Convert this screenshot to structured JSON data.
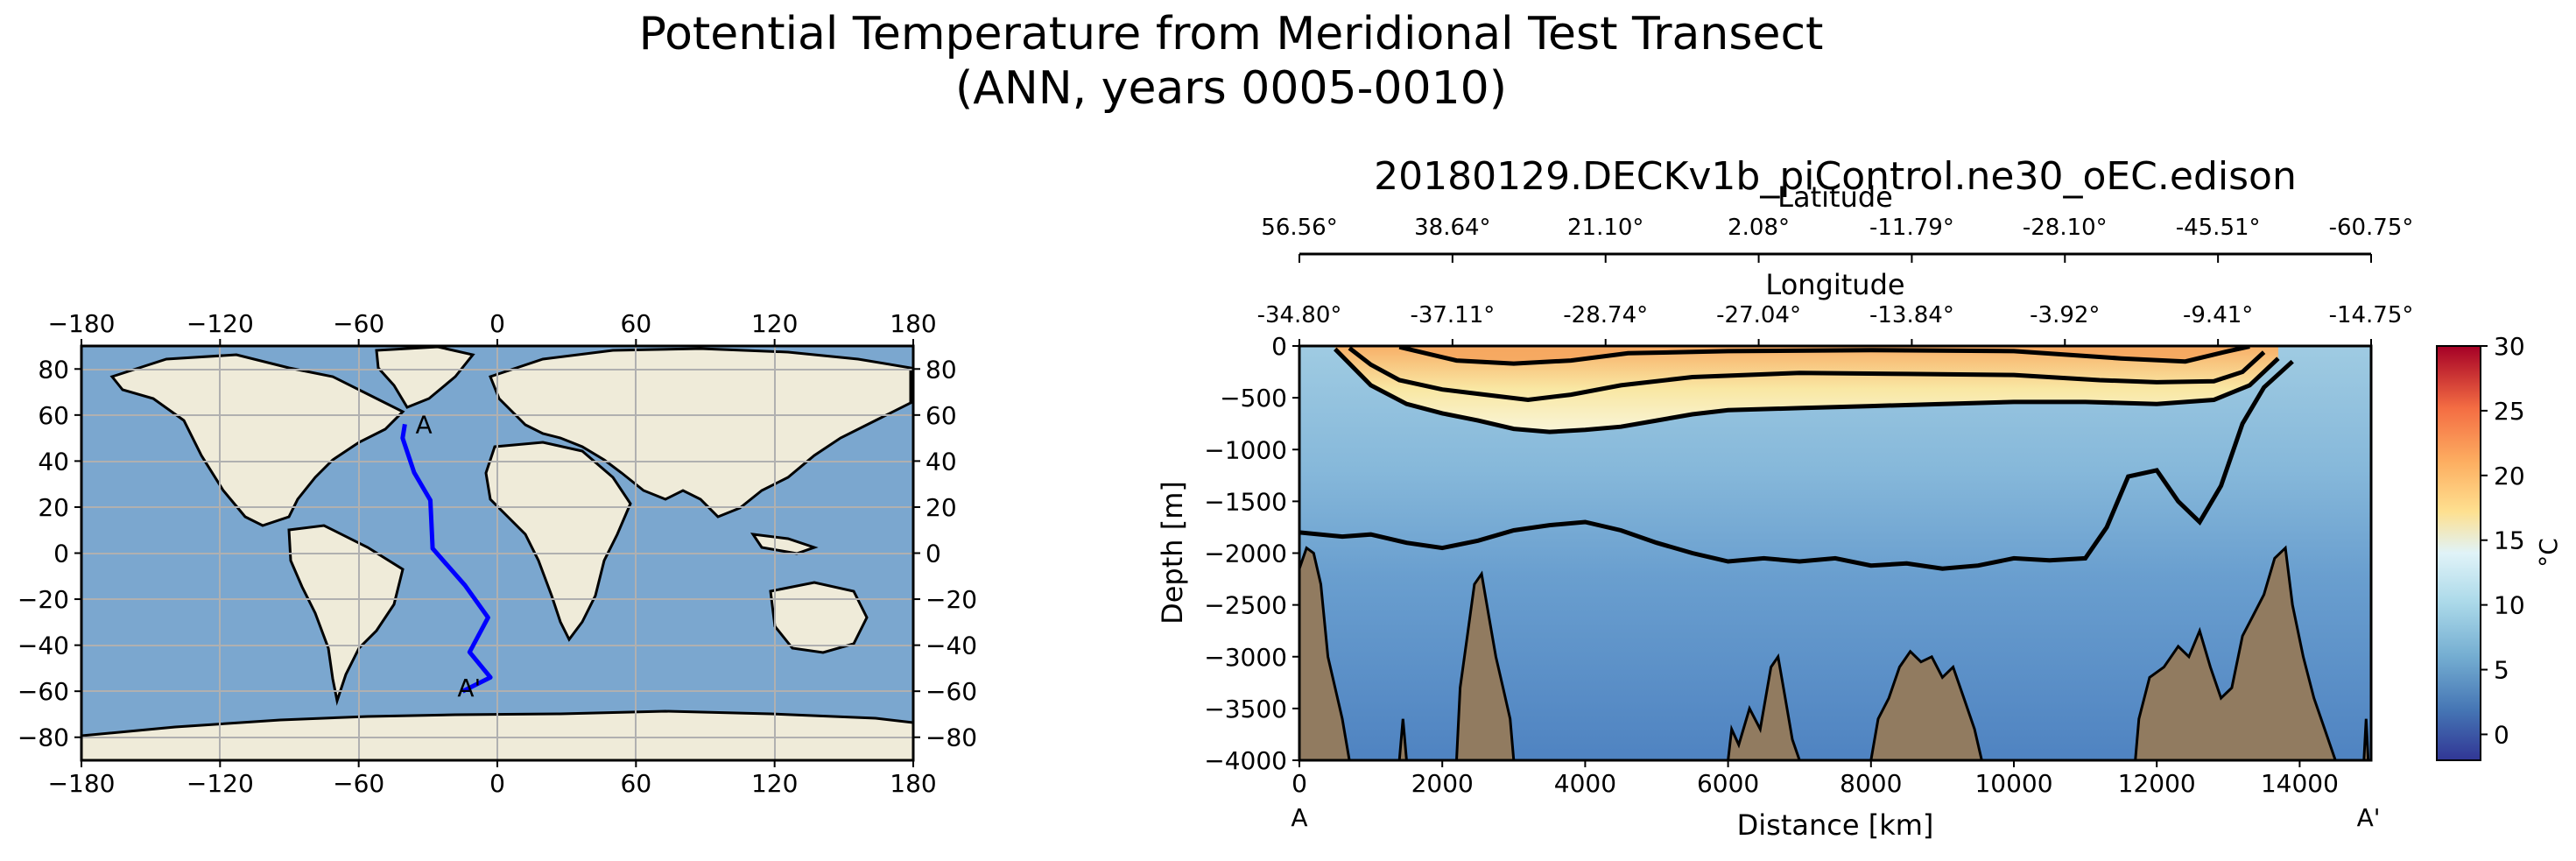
{
  "figure": {
    "title_line1": "Potential Temperature from Meridional Test Transect",
    "title_line2": "(ANN, years 0005-0010)"
  },
  "chart_data": [
    {
      "type": "map",
      "name": "transect-map",
      "x_ticks": [
        "−180",
        "−120",
        "−60",
        "0",
        "60",
        "120",
        "180"
      ],
      "y_ticks": [
        "80",
        "60",
        "40",
        "20",
        "0",
        "−20",
        "−40",
        "−60",
        "−80"
      ],
      "lon_range": [
        -180,
        180
      ],
      "lat_range": [
        -90,
        90
      ],
      "grid": true,
      "start_label": "A",
      "end_label": "A'",
      "transect_color": "#0000ff",
      "transect": [
        {
          "lon": -40,
          "lat": 56
        },
        {
          "lon": -41,
          "lat": 50
        },
        {
          "lon": -36,
          "lat": 35
        },
        {
          "lon": -29,
          "lat": 23
        },
        {
          "lon": -28,
          "lat": 2
        },
        {
          "lon": -14,
          "lat": -14
        },
        {
          "lon": -4,
          "lat": -28
        },
        {
          "lon": -12,
          "lat": -43
        },
        {
          "lon": -3,
          "lat": -54
        },
        {
          "lon": -15,
          "lat": -60
        }
      ],
      "ocean_color": "#7ba7cf",
      "land_color": "#efebd9"
    },
    {
      "type": "section",
      "name": "temperature-section",
      "title": "20180129.DECKv1b_piControl.ne30_oEC.edison",
      "xlabel": "Distance [km]",
      "ylabel": "Depth [m]",
      "xlim": [
        0,
        15000
      ],
      "ylim": [
        -4000,
        0
      ],
      "x_ticks": [
        "0",
        "2000",
        "4000",
        "6000",
        "8000",
        "10000",
        "12000",
        "14000"
      ],
      "y_ticks": [
        "0",
        "−500",
        "−1000",
        "−1500",
        "−2000",
        "−2500",
        "−3000",
        "−3500",
        "−4000"
      ],
      "start_label": "A",
      "end_label": "A'",
      "latitude_axis_label": "Latitude",
      "latitude_ticks": [
        "56.56°",
        "38.64°",
        "21.10°",
        "2.08°",
        "-11.79°",
        "-28.10°",
        "-45.51°",
        "-60.75°"
      ],
      "longitude_axis_label": "Longitude",
      "longitude_ticks": [
        "-34.80°",
        "-37.11°",
        "-28.74°",
        "-27.04°",
        "-13.84°",
        "-3.92°",
        "-9.41°",
        "-14.75°"
      ],
      "colorbar": {
        "label": "°C",
        "ticks": [
          "30",
          "25",
          "20",
          "15",
          "10",
          "5",
          "0"
        ],
        "min": -2,
        "max": 30
      },
      "contour_2C_depth": [
        {
          "x": 0,
          "y": -1800
        },
        {
          "x": 600,
          "y": -1840
        },
        {
          "x": 1000,
          "y": -1820
        },
        {
          "x": 1500,
          "y": -1900
        },
        {
          "x": 2000,
          "y": -1950
        },
        {
          "x": 2500,
          "y": -1880
        },
        {
          "x": 3000,
          "y": -1780
        },
        {
          "x": 3500,
          "y": -1730
        },
        {
          "x": 4000,
          "y": -1700
        },
        {
          "x": 4500,
          "y": -1780
        },
        {
          "x": 5000,
          "y": -1900
        },
        {
          "x": 5500,
          "y": -2000
        },
        {
          "x": 6000,
          "y": -2080
        },
        {
          "x": 6500,
          "y": -2050
        },
        {
          "x": 7000,
          "y": -2080
        },
        {
          "x": 7500,
          "y": -2050
        },
        {
          "x": 8000,
          "y": -2120
        },
        {
          "x": 8500,
          "y": -2100
        },
        {
          "x": 9000,
          "y": -2150
        },
        {
          "x": 9500,
          "y": -2120
        },
        {
          "x": 10000,
          "y": -2050
        },
        {
          "x": 10500,
          "y": -2070
        },
        {
          "x": 11000,
          "y": -2050
        },
        {
          "x": 11300,
          "y": -1750
        },
        {
          "x": 11600,
          "y": -1260
        },
        {
          "x": 12000,
          "y": -1200
        },
        {
          "x": 12300,
          "y": -1500
        },
        {
          "x": 12600,
          "y": -1700
        },
        {
          "x": 12900,
          "y": -1350
        },
        {
          "x": 13200,
          "y": -750
        },
        {
          "x": 13500,
          "y": -400
        },
        {
          "x": 13900,
          "y": -150
        }
      ],
      "contour_5C_depth": [
        {
          "x": 500,
          "y": -30
        },
        {
          "x": 1000,
          "y": -380
        },
        {
          "x": 1500,
          "y": -560
        },
        {
          "x": 2000,
          "y": -650
        },
        {
          "x": 2500,
          "y": -720
        },
        {
          "x": 3000,
          "y": -800
        },
        {
          "x": 3500,
          "y": -830
        },
        {
          "x": 4000,
          "y": -810
        },
        {
          "x": 4500,
          "y": -780
        },
        {
          "x": 5000,
          "y": -720
        },
        {
          "x": 5500,
          "y": -660
        },
        {
          "x": 6000,
          "y": -620
        },
        {
          "x": 7000,
          "y": -600
        },
        {
          "x": 8000,
          "y": -580
        },
        {
          "x": 9000,
          "y": -560
        },
        {
          "x": 10000,
          "y": -540
        },
        {
          "x": 11000,
          "y": -540
        },
        {
          "x": 12000,
          "y": -560
        },
        {
          "x": 12800,
          "y": -520
        },
        {
          "x": 13300,
          "y": -380
        },
        {
          "x": 13700,
          "y": -120
        }
      ],
      "contour_10C_depth": [
        {
          "x": 700,
          "y": -20
        },
        {
          "x": 1000,
          "y": -180
        },
        {
          "x": 1400,
          "y": -330
        },
        {
          "x": 2000,
          "y": -420
        },
        {
          "x": 2600,
          "y": -470
        },
        {
          "x": 3200,
          "y": -520
        },
        {
          "x": 3800,
          "y": -470
        },
        {
          "x": 4500,
          "y": -380
        },
        {
          "x": 5500,
          "y": -300
        },
        {
          "x": 7000,
          "y": -260
        },
        {
          "x": 8500,
          "y": -270
        },
        {
          "x": 10000,
          "y": -280
        },
        {
          "x": 11200,
          "y": -330
        },
        {
          "x": 12000,
          "y": -350
        },
        {
          "x": 12800,
          "y": -340
        },
        {
          "x": 13200,
          "y": -250
        },
        {
          "x": 13500,
          "y": -60
        }
      ],
      "contour_15C_depth": [
        {
          "x": 1400,
          "y": -10
        },
        {
          "x": 2200,
          "y": -140
        },
        {
          "x": 3000,
          "y": -170
        },
        {
          "x": 3800,
          "y": -140
        },
        {
          "x": 4600,
          "y": -70
        },
        {
          "x": 6000,
          "y": -50
        },
        {
          "x": 8000,
          "y": -40
        },
        {
          "x": 10000,
          "y": -50
        },
        {
          "x": 11500,
          "y": -120
        },
        {
          "x": 12400,
          "y": -150
        },
        {
          "x": 13000,
          "y": -50
        },
        {
          "x": 13300,
          "y": -5
        }
      ],
      "bathymetry": [
        {
          "x": 0,
          "y": -2150
        },
        {
          "x": 100,
          "y": -1950
        },
        {
          "x": 200,
          "y": -2000
        },
        {
          "x": 300,
          "y": -2300
        },
        {
          "x": 400,
          "y": -3000
        },
        {
          "x": 500,
          "y": -3300
        },
        {
          "x": 600,
          "y": -3600
        },
        {
          "x": 700,
          "y": -4000
        },
        {
          "x": 1400,
          "y": -4000
        },
        {
          "x": 1450,
          "y": -3600
        },
        {
          "x": 1500,
          "y": -4000
        },
        {
          "x": 2200,
          "y": -4000
        },
        {
          "x": 2250,
          "y": -3300
        },
        {
          "x": 2350,
          "y": -2800
        },
        {
          "x": 2450,
          "y": -2300
        },
        {
          "x": 2550,
          "y": -2200
        },
        {
          "x": 2650,
          "y": -2600
        },
        {
          "x": 2750,
          "y": -3000
        },
        {
          "x": 2850,
          "y": -3300
        },
        {
          "x": 2950,
          "y": -3600
        },
        {
          "x": 3000,
          "y": -4000
        },
        {
          "x": 6000,
          "y": -4000
        },
        {
          "x": 6050,
          "y": -3700
        },
        {
          "x": 6150,
          "y": -3850
        },
        {
          "x": 6300,
          "y": -3500
        },
        {
          "x": 6450,
          "y": -3700
        },
        {
          "x": 6600,
          "y": -3100
        },
        {
          "x": 6700,
          "y": -3000
        },
        {
          "x": 6800,
          "y": -3400
        },
        {
          "x": 6900,
          "y": -3800
        },
        {
          "x": 7000,
          "y": -4000
        },
        {
          "x": 8000,
          "y": -4000
        },
        {
          "x": 8100,
          "y": -3600
        },
        {
          "x": 8250,
          "y": -3400
        },
        {
          "x": 8400,
          "y": -3100
        },
        {
          "x": 8550,
          "y": -2950
        },
        {
          "x": 8700,
          "y": -3050
        },
        {
          "x": 8850,
          "y": -3000
        },
        {
          "x": 9000,
          "y": -3200
        },
        {
          "x": 9150,
          "y": -3100
        },
        {
          "x": 9300,
          "y": -3400
        },
        {
          "x": 9450,
          "y": -3700
        },
        {
          "x": 9550,
          "y": -4000
        },
        {
          "x": 11700,
          "y": -4000
        },
        {
          "x": 11750,
          "y": -3600
        },
        {
          "x": 11900,
          "y": -3200
        },
        {
          "x": 12100,
          "y": -3100
        },
        {
          "x": 12300,
          "y": -2900
        },
        {
          "x": 12450,
          "y": -3000
        },
        {
          "x": 12600,
          "y": -2750
        },
        {
          "x": 12750,
          "y": -3100
        },
        {
          "x": 12900,
          "y": -3400
        },
        {
          "x": 13050,
          "y": -3300
        },
        {
          "x": 13200,
          "y": -2800
        },
        {
          "x": 13350,
          "y": -2600
        },
        {
          "x": 13500,
          "y": -2400
        },
        {
          "x": 13650,
          "y": -2050
        },
        {
          "x": 13800,
          "y": -1950
        },
        {
          "x": 13900,
          "y": -2500
        },
        {
          "x": 14050,
          "y": -3000
        },
        {
          "x": 14200,
          "y": -3400
        },
        {
          "x": 14350,
          "y": -3700
        },
        {
          "x": 14500,
          "y": -4000
        },
        {
          "x": 14900,
          "y": -4000
        },
        {
          "x": 14930,
          "y": -3600
        },
        {
          "x": 14960,
          "y": -4000
        }
      ]
    }
  ]
}
